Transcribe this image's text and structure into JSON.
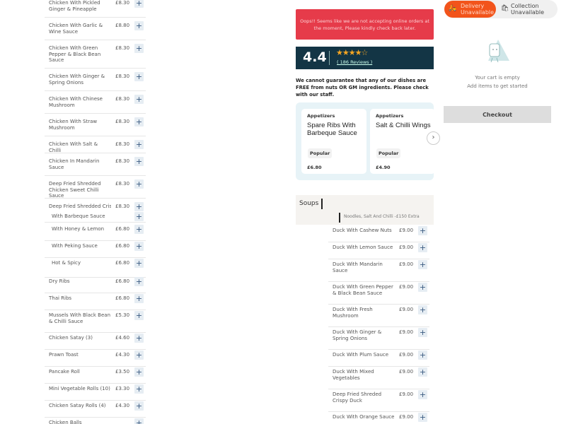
{
  "left_menu_a": [
    {
      "name": "Chicken With Pickled Ginger & Pineapple",
      "price": "£8.30"
    },
    {
      "name": "Chicken With Garlic & Wine Sauce",
      "price": "£8.80"
    },
    {
      "name": "Chicken With Green Pepper & Black Bean Sauce",
      "price": "£8.30"
    },
    {
      "name": "Chicken With Ginger & Spring Onions",
      "price": "£8.30"
    },
    {
      "name": "Chicken With Chinese Mushroom",
      "price": "£8.30"
    },
    {
      "name": "Chicken With Straw Mushroom",
      "price": "£8.30"
    },
    {
      "name": "Chicken With Salt & Chilli",
      "price": "£8.30"
    },
    {
      "name": "Chicken In Mandarin Sauce",
      "price": "£8.30"
    },
    {
      "name": "Deep Fried Shredded Chicken Sweet Chilli Sauce",
      "price": "£8.30"
    },
    {
      "name": "Deep Fried Shredded Crispy Chicken In",
      "price": "£8.30"
    }
  ],
  "left_menu_b": [
    {
      "name": "With Barbeque Sauce",
      "price": "",
      "indent": true
    },
    {
      "name": "With Honey & Lemon",
      "price": "£6.80",
      "indent": true
    },
    {
      "name": "With Peking Sauce",
      "price": "£6.80",
      "indent": true
    },
    {
      "name": "Hot & Spicy",
      "price": "£6.80",
      "indent": true
    },
    {
      "name": "Dry Ribs",
      "price": "£6.80"
    },
    {
      "name": "Thai Ribs",
      "price": "£6.80"
    },
    {
      "name": "Mussels With Black Bean & Chilli Sauce",
      "price": "£5.30"
    },
    {
      "name": "Chicken Satay (3)",
      "price": "£4.60"
    },
    {
      "name": "Prawn Toast",
      "price": "£4.30"
    },
    {
      "name": "Pancake Roll",
      "price": "£3.50"
    },
    {
      "name": "Mini Vegetable Rolls (10)",
      "price": "£3.30"
    },
    {
      "name": "Chicken Satay Rolls (4)",
      "price": "£4.30"
    },
    {
      "name": "Chicken Balls",
      "price": ""
    }
  ],
  "alert": "Oops!! Seems like we are not accepting online orders at the moment, Please kindly check back later.",
  "rating": {
    "score": "4.4",
    "stars": "★★★★☆",
    "value": 4.4,
    "reviews": "( 186 Reviews )"
  },
  "allergy_notice": "We cannot guarantee that any of our dishes are FREE from nuts OR GM ingredients. Please check with our staff.",
  "popular": [
    {
      "category": "Appetizers",
      "title": "Spare Ribs With Barbeque Sauce",
      "badge": "Popular",
      "price": "£6.80"
    },
    {
      "category": "Appetizers",
      "title": "Salt & Chilli Wings",
      "badge": "Popular",
      "price": "£4.90"
    }
  ],
  "next_icon": "chevron-right-icon",
  "section_title": "Soups",
  "sub_note": "Noodles, Salt And Chilli -£150 Extra",
  "duck_menu": [
    {
      "name": "Duck With Cashew Nuts",
      "price": "£9.00"
    },
    {
      "name": "Duck With Lemon Sauce",
      "price": "£9.00"
    },
    {
      "name": "Duck With Mandarin Sauce",
      "price": "£9.00"
    },
    {
      "name": "Duck With Green Pepper & Black Bean Sauce",
      "price": "£9.00"
    },
    {
      "name": "Duck With Fresh Mushroom",
      "price": "£9.00"
    },
    {
      "name": "Duck With Ginger & Spring Onions",
      "price": "£9.00"
    },
    {
      "name": "Duck With Plum Sauce",
      "price": "£9.00"
    },
    {
      "name": "Duck With Mixed Vegetables",
      "price": "£9.00"
    },
    {
      "name": "Deep Fried Shreded Crispy Duck",
      "price": "£9.00"
    },
    {
      "name": "Duck With Orange Sauce",
      "price": "£9.00"
    }
  ],
  "order_mode": {
    "delivery": "Delivery Unavailable",
    "collection": "Collection Unavailable",
    "active_color": "#f2541b"
  },
  "cart": {
    "empty_title": "Your cart is empty",
    "empty_sub": "Add items to get started",
    "checkout": "Checkout"
  },
  "colors": {
    "alert": "#e63b4a",
    "rating_bg": "#133545",
    "star": "#f5a623",
    "add_button": "#e6edf3"
  }
}
